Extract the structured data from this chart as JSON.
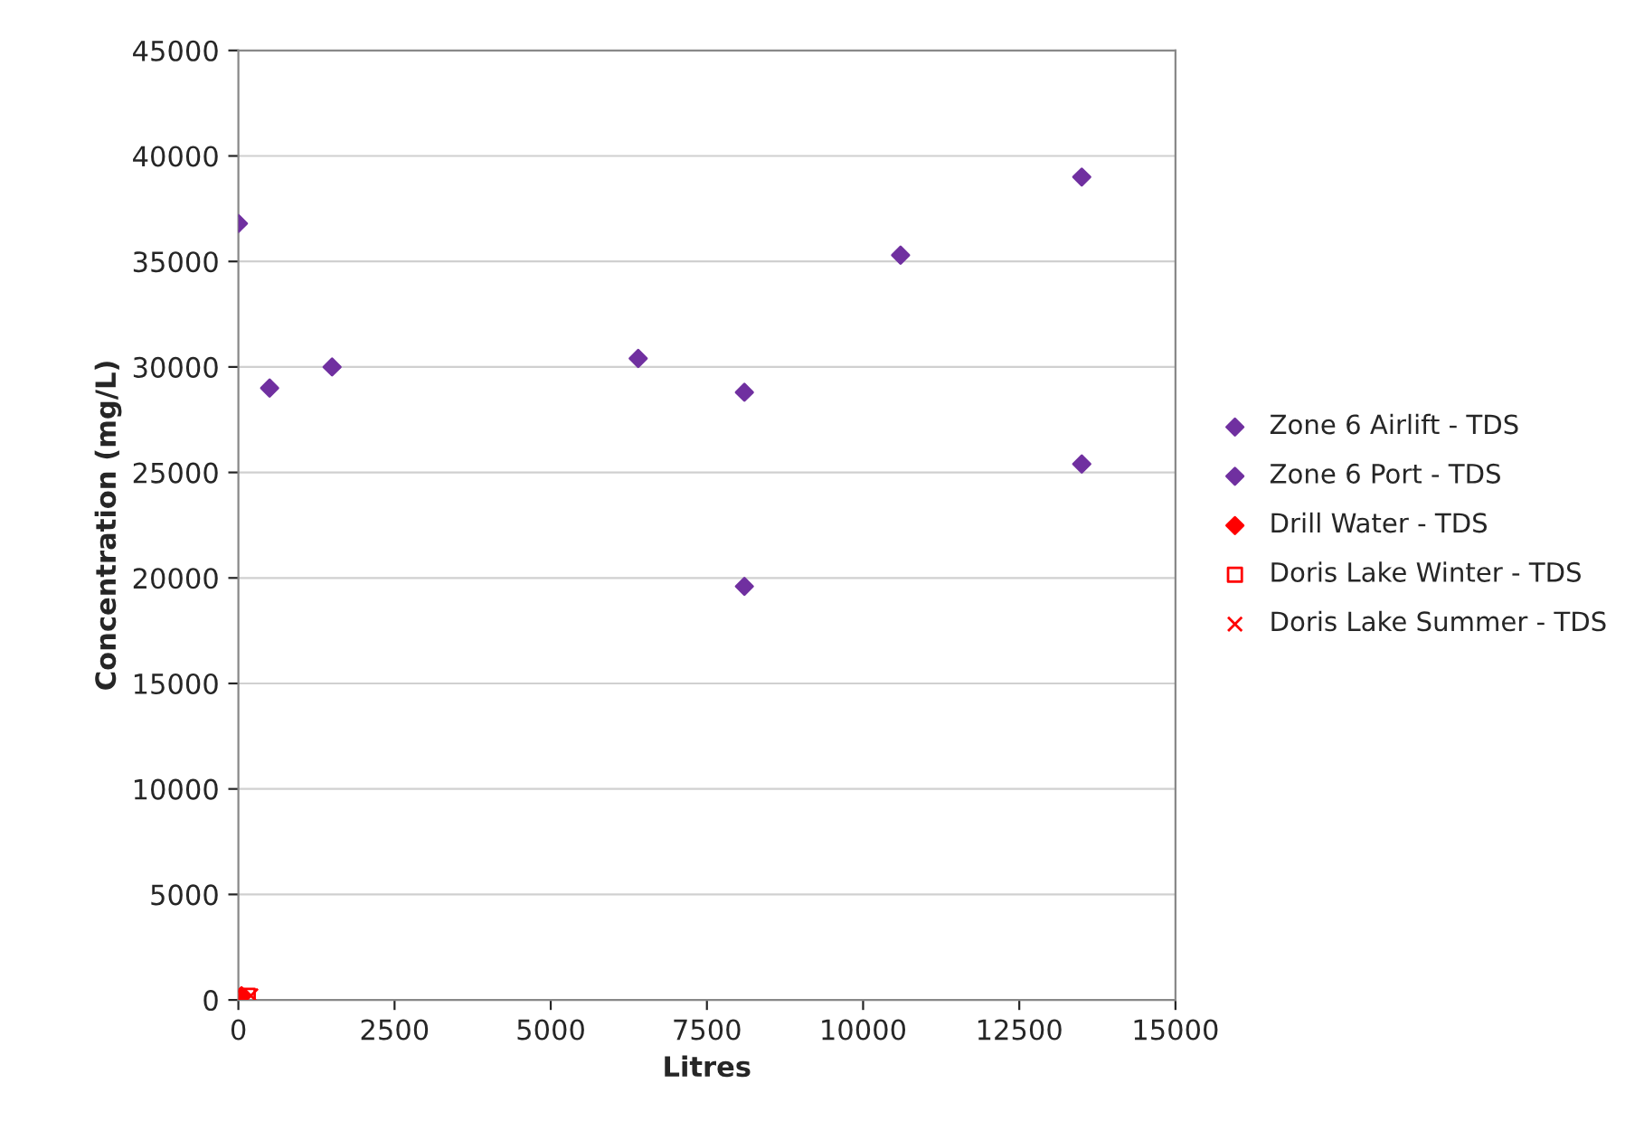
{
  "chart_data": {
    "type": "scatter",
    "xlabel": "Litres",
    "ylabel": "Concentration (mg/L)",
    "xlim": [
      0,
      15000
    ],
    "xticks": [
      0,
      2500,
      5000,
      7500,
      10000,
      12500,
      15000
    ],
    "ylim": [
      0,
      45000
    ],
    "yticks": [
      0,
      5000,
      10000,
      15000,
      20000,
      25000,
      30000,
      35000,
      40000,
      45000
    ],
    "grid": "y",
    "legend": "right",
    "series": [
      {
        "name": "Zone 6 Airlift - TDS",
        "color": "#7030a0",
        "marker": "diamond",
        "x": [
          500,
          1500,
          6400,
          10600,
          13500
        ],
        "values": [
          29000,
          30000,
          30400,
          35300,
          39000
        ]
      },
      {
        "name": "Zone 6 Port - TDS",
        "color": "#7030a0",
        "marker": "diamond",
        "x": [
          0,
          8100,
          8100,
          13500
        ],
        "values": [
          36800,
          28800,
          19600,
          25400
        ]
      },
      {
        "name": "Drill Water - TDS",
        "color": "#ff0000",
        "marker": "diamond",
        "x": [
          50
        ],
        "values": [
          200
        ]
      },
      {
        "name": "Doris Lake Winter - TDS",
        "color": "#ff0000",
        "marker": "square",
        "x": [
          150
        ],
        "values": [
          200
        ]
      },
      {
        "name": "Doris Lake Summer - TDS",
        "color": "#ff0000",
        "marker": "cross",
        "x": [
          200
        ],
        "values": [
          200
        ]
      }
    ]
  }
}
